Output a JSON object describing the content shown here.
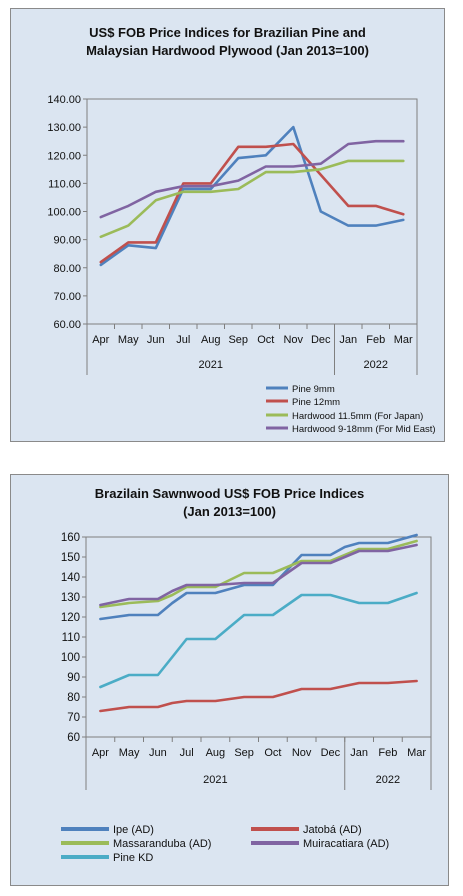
{
  "chart_data": [
    {
      "type": "line",
      "title": "US$ FOB Price Indices for Brazilian  Pine and Malaysian Hardwood Plywood (Jan 2013=100)",
      "title_lines": [
        "US$ FOB Price Indices for Brazilian  Pine and",
        "Malaysian Hardwood Plywood (Jan 2013=100)"
      ],
      "categories": [
        "Apr",
        "May",
        "Jun",
        "Jul",
        "Aug",
        "Sep",
        "Oct",
        "Nov",
        "Dec",
        "Jan",
        "Feb",
        "Mar"
      ],
      "groups": [
        {
          "label": "2021",
          "from": 0,
          "to": 8
        },
        {
          "label": "2022",
          "from": 9,
          "to": 11
        }
      ],
      "ylim": [
        60,
        140
      ],
      "yticks": [
        "60.00",
        "70.00",
        "80.00",
        "90.00",
        "100.00",
        "110.00",
        "120.00",
        "130.00",
        "140.00"
      ],
      "ytick_values": [
        60,
        70,
        80,
        90,
        100,
        110,
        120,
        130,
        140
      ],
      "grid": false,
      "legend_position": "bottom",
      "series": [
        {
          "name": "Pine 9mm",
          "color": "#4f81bd",
          "points": [
            [
              0,
              81
            ],
            [
              1,
              88
            ],
            [
              2,
              87
            ],
            [
              3,
              108
            ],
            [
              4,
              108
            ],
            [
              5,
              119
            ],
            [
              6,
              120
            ],
            [
              7,
              130
            ],
            [
              8,
              100
            ],
            [
              9,
              95
            ],
            [
              10,
              95
            ],
            [
              11,
              97
            ]
          ]
        },
        {
          "name": "Pine 12mm",
          "color": "#c0504d",
          "points": [
            [
              0,
              82
            ],
            [
              1,
              89
            ],
            [
              2,
              89
            ],
            [
              3,
              110
            ],
            [
              4,
              110
            ],
            [
              5,
              123
            ],
            [
              6,
              123
            ],
            [
              7,
              124
            ],
            [
              8,
              113
            ],
            [
              9,
              102
            ],
            [
              10,
              102
            ],
            [
              11,
              99
            ]
          ]
        },
        {
          "name": "Hardwood 11.5mm (For Japan)",
          "color": "#9bbb59",
          "points": [
            [
              0,
              91
            ],
            [
              1,
              95
            ],
            [
              2,
              104
            ],
            [
              3,
              107
            ],
            [
              4,
              107
            ],
            [
              5,
              108
            ],
            [
              6,
              114
            ],
            [
              7,
              114
            ],
            [
              8,
              115
            ],
            [
              9,
              118
            ],
            [
              10,
              118
            ],
            [
              11,
              118
            ]
          ]
        },
        {
          "name": "Hardwood 9-18mm (For Mid East)",
          "color": "#8064a2",
          "points": [
            [
              0,
              98
            ],
            [
              1,
              102
            ],
            [
              2,
              107
            ],
            [
              3,
              109
            ],
            [
              4,
              109
            ],
            [
              5,
              111
            ],
            [
              6,
              116
            ],
            [
              7,
              116
            ],
            [
              8,
              117
            ],
            [
              9,
              124
            ],
            [
              10,
              125
            ],
            [
              11,
              125
            ]
          ]
        }
      ]
    },
    {
      "type": "line",
      "title": "Brazilain Sawnwood US$ FOB Price Indices (Jan 2013=100)",
      "title_lines": [
        "Brazilain Sawnwood US$ FOB Price Indices",
        "(Jan 2013=100)"
      ],
      "categories": [
        "Apr",
        "May",
        "Jun",
        "Jul",
        "Aug",
        "Sep",
        "Oct",
        "Nov",
        "Dec",
        "Jan",
        "Feb",
        "Mar"
      ],
      "groups": [
        {
          "label": "2021",
          "from": 0,
          "to": 8
        },
        {
          "label": "2022",
          "from": 9,
          "to": 11
        }
      ],
      "ylim": [
        60,
        160
      ],
      "yticks": [
        "60",
        "70",
        "80",
        "90",
        "100",
        "110",
        "120",
        "130",
        "140",
        "150",
        "160"
      ],
      "ytick_values": [
        60,
        70,
        80,
        90,
        100,
        110,
        120,
        130,
        140,
        150,
        160
      ],
      "grid": false,
      "legend_position": "bottom",
      "series": [
        {
          "name": "Ipe (AD)",
          "color": "#4f81bd",
          "points": [
            [
              0,
              119
            ],
            [
              0.5,
              120
            ],
            [
              1,
              121
            ],
            [
              2,
              121
            ],
            [
              2.5,
              127
            ],
            [
              3,
              132
            ],
            [
              4,
              132
            ],
            [
              5,
              136
            ],
            [
              6,
              136
            ],
            [
              7,
              151
            ],
            [
              8,
              151
            ],
            [
              8.5,
              155
            ],
            [
              9,
              157
            ],
            [
              10,
              157
            ],
            [
              11,
              161
            ]
          ]
        },
        {
          "name": "Jatobá (AD)",
          "color": "#c0504d",
          "points": [
            [
              0,
              73
            ],
            [
              1,
              75
            ],
            [
              2,
              75
            ],
            [
              2.5,
              77
            ],
            [
              3,
              78
            ],
            [
              4,
              78
            ],
            [
              5,
              80
            ],
            [
              6,
              80
            ],
            [
              7,
              84
            ],
            [
              8,
              84
            ],
            [
              9,
              87
            ],
            [
              10,
              87
            ],
            [
              11,
              88
            ]
          ]
        },
        {
          "name": "Massaranduba (AD)",
          "color": "#9bbb59",
          "points": [
            [
              0,
              125
            ],
            [
              1,
              127
            ],
            [
              2,
              128
            ],
            [
              2.5,
              131
            ],
            [
              3,
              135
            ],
            [
              4,
              135
            ],
            [
              5,
              142
            ],
            [
              6,
              142
            ],
            [
              7,
              148
            ],
            [
              8,
              148
            ],
            [
              8.5,
              151
            ],
            [
              9,
              154
            ],
            [
              10,
              154
            ],
            [
              11,
              158
            ]
          ]
        },
        {
          "name": "Muiracatiara (AD)",
          "color": "#8064a2",
          "points": [
            [
              0,
              126
            ],
            [
              1,
              129
            ],
            [
              2,
              129
            ],
            [
              2.5,
              133
            ],
            [
              3,
              136
            ],
            [
              4,
              136
            ],
            [
              5,
              137
            ],
            [
              6,
              137
            ],
            [
              7,
              147
            ],
            [
              8,
              147
            ],
            [
              8.5,
              150
            ],
            [
              9,
              153
            ],
            [
              10,
              153
            ],
            [
              11,
              156
            ]
          ]
        },
        {
          "name": "Pine KD",
          "color": "#4bacc6",
          "points": [
            [
              0,
              85
            ],
            [
              1,
              91
            ],
            [
              2,
              91
            ],
            [
              2.5,
              100
            ],
            [
              3,
              109
            ],
            [
              4,
              109
            ],
            [
              5,
              121
            ],
            [
              6,
              121
            ],
            [
              7,
              131
            ],
            [
              8,
              131
            ],
            [
              8.5,
              129
            ],
            [
              9,
              127
            ],
            [
              10,
              127
            ],
            [
              11,
              132
            ]
          ]
        }
      ]
    }
  ]
}
